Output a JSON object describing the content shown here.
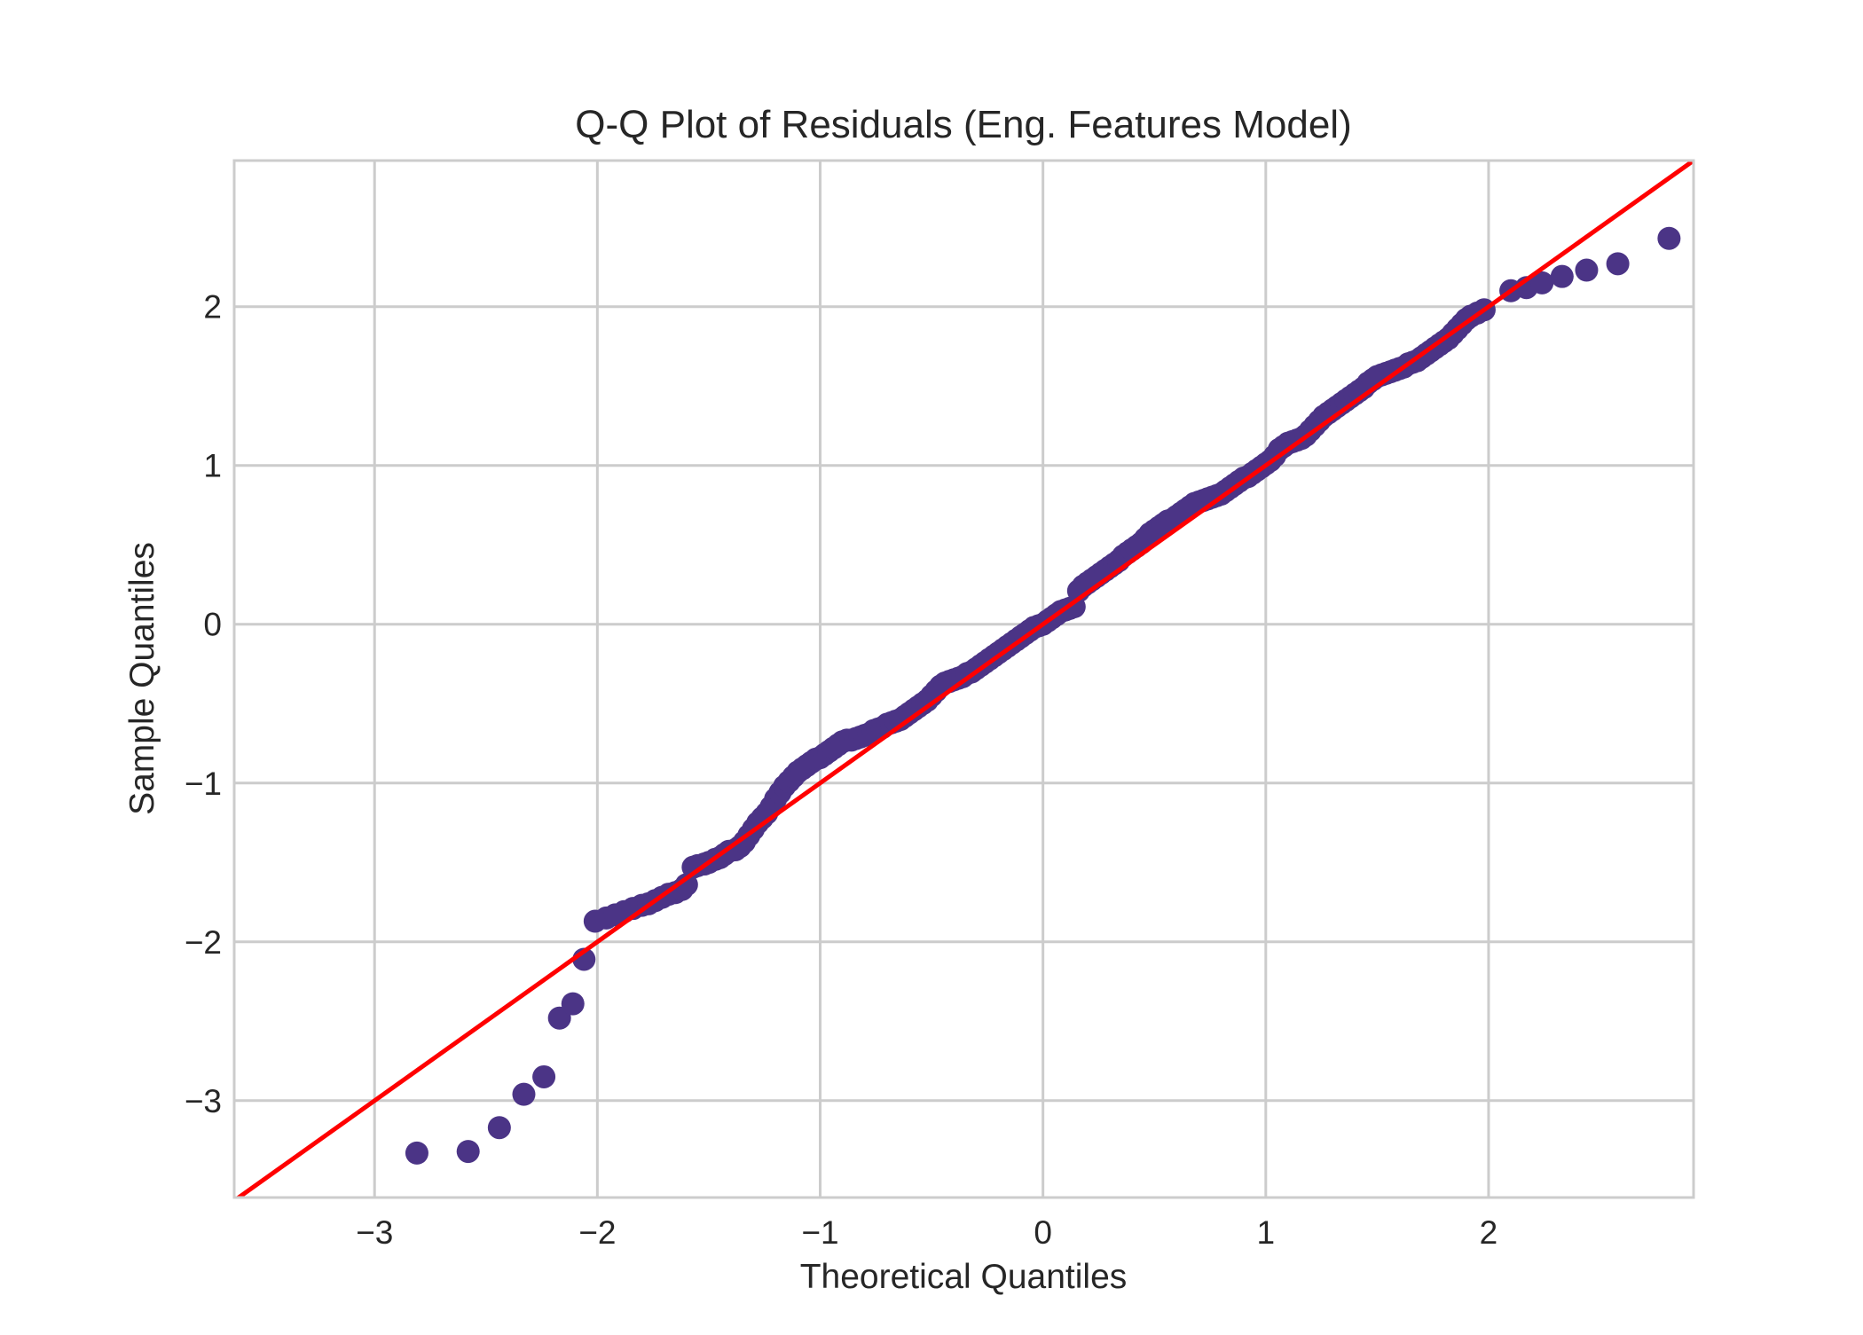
{
  "chart_data": {
    "type": "scatter",
    "title": "Q-Q Plot of Residuals (Eng. Features Model)",
    "xlabel": "Theoretical Quantiles",
    "ylabel": "Sample Quantiles",
    "xlim": [
      -3.63,
      2.92
    ],
    "ylim": [
      -3.61,
      2.92
    ],
    "xticks": [
      -3,
      -2,
      -1,
      0,
      1,
      2
    ],
    "yticks": [
      -3,
      -2,
      -1,
      0,
      1,
      2
    ],
    "xtick_labels": [
      "−3",
      "−2",
      "−1",
      "0",
      "1",
      "2"
    ],
    "ytick_labels": [
      "−3",
      "−2",
      "−1",
      "0",
      "1",
      "2"
    ],
    "grid": true,
    "series": [
      {
        "kind": "points",
        "color": "#4b3486",
        "points": [
          [
            -2.81,
            -3.33
          ],
          [
            -2.58,
            -3.32
          ],
          [
            -2.44,
            -3.17
          ],
          [
            -2.33,
            -2.96
          ],
          [
            -2.24,
            -2.85
          ],
          [
            -2.17,
            -2.48
          ],
          [
            -2.11,
            -2.39
          ],
          [
            -2.06,
            -2.11
          ],
          [
            -2.01,
            -1.87
          ],
          [
            -1.96,
            -1.85
          ],
          [
            -1.92,
            -1.83
          ],
          [
            -1.88,
            -1.81
          ],
          [
            -1.84,
            -1.79
          ],
          [
            -1.8,
            -1.77
          ],
          [
            -1.77,
            -1.76
          ],
          [
            -1.74,
            -1.74
          ],
          [
            -1.71,
            -1.72
          ],
          [
            -1.68,
            -1.7
          ],
          [
            -1.65,
            -1.69
          ],
          [
            -1.62,
            -1.67
          ],
          [
            -1.6,
            -1.64
          ],
          [
            -1.57,
            -1.53
          ],
          [
            -1.55,
            -1.52
          ],
          [
            -1.52,
            -1.51
          ],
          [
            -1.5,
            -1.5
          ],
          [
            -1.47,
            -1.48
          ],
          [
            -1.45,
            -1.47
          ],
          [
            -1.43,
            -1.45
          ],
          [
            -1.41,
            -1.43
          ],
          [
            -1.38,
            -1.42
          ],
          [
            -1.36,
            -1.4
          ],
          [
            -1.34,
            -1.37
          ],
          [
            -1.32,
            -1.33
          ],
          [
            -1.3,
            -1.29
          ],
          [
            -1.28,
            -1.25
          ],
          [
            -1.26,
            -1.22
          ],
          [
            -1.24,
            -1.19
          ],
          [
            -1.22,
            -1.15
          ],
          [
            -1.2,
            -1.1
          ],
          [
            -1.18,
            -1.06
          ],
          [
            -1.16,
            -1.02
          ],
          [
            -1.14,
            -0.99
          ],
          [
            -1.12,
            -0.96
          ],
          [
            -1.1,
            -0.93
          ],
          [
            -1.08,
            -0.91
          ],
          [
            -1.06,
            -0.89
          ],
          [
            -1.04,
            -0.87
          ],
          [
            -1.02,
            -0.85
          ],
          [
            -1.0,
            -0.84
          ],
          [
            -0.98,
            -0.82
          ],
          [
            -0.96,
            -0.8
          ],
          [
            -0.94,
            -0.78
          ],
          [
            -0.92,
            -0.76
          ],
          [
            -0.9,
            -0.74
          ],
          [
            -0.88,
            -0.73
          ],
          [
            -0.86,
            -0.73
          ],
          [
            -0.84,
            -0.72
          ],
          [
            -0.82,
            -0.71
          ],
          [
            -0.8,
            -0.7
          ],
          [
            -0.78,
            -0.69
          ],
          [
            -0.76,
            -0.67
          ],
          [
            -0.74,
            -0.66
          ],
          [
            -0.72,
            -0.65
          ],
          [
            -0.7,
            -0.63
          ],
          [
            -0.68,
            -0.62
          ],
          [
            -0.66,
            -0.61
          ],
          [
            -0.64,
            -0.6
          ],
          [
            -0.62,
            -0.58
          ],
          [
            -0.6,
            -0.56
          ],
          [
            -0.58,
            -0.54
          ],
          [
            -0.56,
            -0.52
          ],
          [
            -0.54,
            -0.5
          ],
          [
            -0.52,
            -0.48
          ],
          [
            -0.5,
            -0.45
          ],
          [
            -0.48,
            -0.42
          ],
          [
            -0.46,
            -0.39
          ],
          [
            -0.44,
            -0.37
          ],
          [
            -0.42,
            -0.36
          ],
          [
            -0.4,
            -0.35
          ],
          [
            -0.38,
            -0.34
          ],
          [
            -0.36,
            -0.33
          ],
          [
            -0.34,
            -0.31
          ],
          [
            -0.32,
            -0.3
          ],
          [
            -0.3,
            -0.28
          ],
          [
            -0.28,
            -0.26
          ],
          [
            -0.26,
            -0.24
          ],
          [
            -0.24,
            -0.22
          ],
          [
            -0.22,
            -0.2
          ],
          [
            -0.2,
            -0.18
          ],
          [
            -0.18,
            -0.16
          ],
          [
            -0.16,
            -0.14
          ],
          [
            -0.14,
            -0.12
          ],
          [
            -0.12,
            -0.1
          ],
          [
            -0.1,
            -0.08
          ],
          [
            -0.08,
            -0.06
          ],
          [
            -0.06,
            -0.04
          ],
          [
            -0.04,
            -0.02
          ],
          [
            -0.02,
            -0.01
          ],
          [
            0.0,
            0.0
          ],
          [
            0.02,
            0.02
          ],
          [
            0.04,
            0.04
          ],
          [
            0.06,
            0.06
          ],
          [
            0.08,
            0.08
          ],
          [
            0.1,
            0.09
          ],
          [
            0.12,
            0.1
          ],
          [
            0.14,
            0.11
          ],
          [
            0.16,
            0.21
          ],
          [
            0.18,
            0.24
          ],
          [
            0.2,
            0.26
          ],
          [
            0.22,
            0.28
          ],
          [
            0.24,
            0.3
          ],
          [
            0.26,
            0.32
          ],
          [
            0.28,
            0.34
          ],
          [
            0.3,
            0.36
          ],
          [
            0.32,
            0.38
          ],
          [
            0.34,
            0.4
          ],
          [
            0.36,
            0.43
          ],
          [
            0.38,
            0.45
          ],
          [
            0.4,
            0.47
          ],
          [
            0.42,
            0.49
          ],
          [
            0.44,
            0.51
          ],
          [
            0.46,
            0.54
          ],
          [
            0.48,
            0.57
          ],
          [
            0.5,
            0.59
          ],
          [
            0.52,
            0.61
          ],
          [
            0.54,
            0.63
          ],
          [
            0.56,
            0.65
          ],
          [
            0.58,
            0.66
          ],
          [
            0.6,
            0.68
          ],
          [
            0.62,
            0.7
          ],
          [
            0.64,
            0.72
          ],
          [
            0.66,
            0.74
          ],
          [
            0.68,
            0.76
          ],
          [
            0.7,
            0.77
          ],
          [
            0.72,
            0.78
          ],
          [
            0.74,
            0.79
          ],
          [
            0.76,
            0.8
          ],
          [
            0.78,
            0.81
          ],
          [
            0.8,
            0.82
          ],
          [
            0.82,
            0.84
          ],
          [
            0.84,
            0.86
          ],
          [
            0.86,
            0.88
          ],
          [
            0.88,
            0.9
          ],
          [
            0.9,
            0.92
          ],
          [
            0.92,
            0.93
          ],
          [
            0.94,
            0.95
          ],
          [
            0.96,
            0.97
          ],
          [
            0.98,
            0.99
          ],
          [
            1.0,
            1.01
          ],
          [
            1.02,
            1.03
          ],
          [
            1.04,
            1.06
          ],
          [
            1.06,
            1.1
          ],
          [
            1.08,
            1.12
          ],
          [
            1.1,
            1.14
          ],
          [
            1.12,
            1.15
          ],
          [
            1.14,
            1.16
          ],
          [
            1.16,
            1.17
          ],
          [
            1.18,
            1.19
          ],
          [
            1.2,
            1.22
          ],
          [
            1.22,
            1.25
          ],
          [
            1.24,
            1.28
          ],
          [
            1.26,
            1.31
          ],
          [
            1.28,
            1.33
          ],
          [
            1.3,
            1.35
          ],
          [
            1.32,
            1.37
          ],
          [
            1.34,
            1.39
          ],
          [
            1.36,
            1.41
          ],
          [
            1.38,
            1.43
          ],
          [
            1.4,
            1.45
          ],
          [
            1.42,
            1.47
          ],
          [
            1.44,
            1.49
          ],
          [
            1.46,
            1.52
          ],
          [
            1.48,
            1.54
          ],
          [
            1.5,
            1.56
          ],
          [
            1.52,
            1.57
          ],
          [
            1.54,
            1.58
          ],
          [
            1.56,
            1.59
          ],
          [
            1.58,
            1.6
          ],
          [
            1.6,
            1.61
          ],
          [
            1.62,
            1.62
          ],
          [
            1.64,
            1.64
          ],
          [
            1.66,
            1.65
          ],
          [
            1.68,
            1.66
          ],
          [
            1.7,
            1.68
          ],
          [
            1.72,
            1.7
          ],
          [
            1.74,
            1.72
          ],
          [
            1.76,
            1.74
          ],
          [
            1.78,
            1.76
          ],
          [
            1.8,
            1.78
          ],
          [
            1.82,
            1.8
          ],
          [
            1.84,
            1.83
          ],
          [
            1.86,
            1.86
          ],
          [
            1.88,
            1.89
          ],
          [
            1.9,
            1.92
          ],
          [
            1.92,
            1.94
          ],
          [
            1.95,
            1.96
          ],
          [
            1.98,
            1.98
          ],
          [
            2.1,
            2.1
          ],
          [
            2.17,
            2.12
          ],
          [
            2.24,
            2.15
          ],
          [
            2.33,
            2.19
          ],
          [
            2.44,
            2.23
          ],
          [
            2.58,
            2.27
          ],
          [
            2.81,
            2.43
          ]
        ]
      },
      {
        "kind": "line",
        "name": "",
        "color": "#ff0000",
        "x": [
          -3.63,
          2.92
        ],
        "y": [
          -3.63,
          2.92
        ]
      }
    ]
  }
}
